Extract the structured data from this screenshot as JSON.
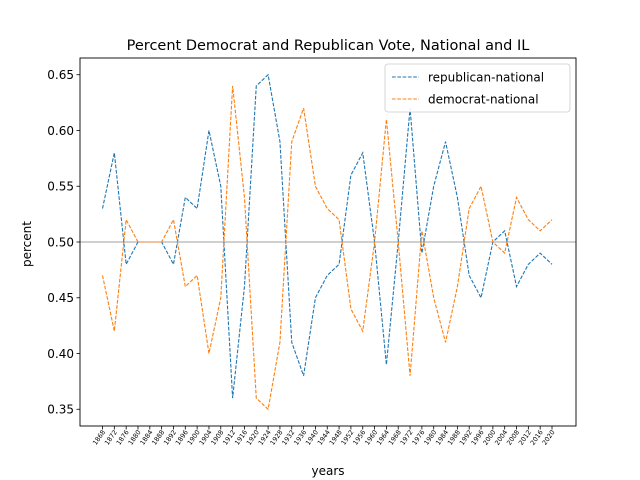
{
  "chart_data": {
    "type": "line",
    "title": "Percent Democrat and Republican Vote, National and IL",
    "xlabel": "years",
    "ylabel": "percent",
    "x": [
      1868,
      1872,
      1876,
      1880,
      1884,
      1888,
      1892,
      1896,
      1900,
      1904,
      1908,
      1912,
      1916,
      1920,
      1924,
      1928,
      1932,
      1936,
      1940,
      1944,
      1948,
      1952,
      1956,
      1960,
      1964,
      1968,
      1972,
      1976,
      1980,
      1984,
      1988,
      1992,
      1996,
      2000,
      2004,
      2008,
      2012,
      2016,
      2020
    ],
    "xticklabels": [
      "1868",
      "1872",
      "1876",
      "1880",
      "1884",
      "1888",
      "1892",
      "1896",
      "1900",
      "1904",
      "1908",
      "1912",
      "1916",
      "1920",
      "1924",
      "1928",
      "1932",
      "1936",
      "1940",
      "1944",
      "1948",
      "1952",
      "1956",
      "1960",
      "1964",
      "1968",
      "1972",
      "1976",
      "1980",
      "1984",
      "1988",
      "1992",
      "1996",
      "2000",
      "2004",
      "2008",
      "2012",
      "2016",
      "2020"
    ],
    "ylim": [
      0.335,
      0.665
    ],
    "yticks": [
      0.35,
      0.4,
      0.45,
      0.5,
      0.55,
      0.6,
      0.65
    ],
    "yticklabels": [
      "0.35",
      "0.40",
      "0.45",
      "0.50",
      "0.55",
      "0.60",
      "0.65"
    ],
    "reference_line": 0.5,
    "line_style": "dashed",
    "grid": false,
    "legend_position": "top-right",
    "series": [
      {
        "name": "republican-national",
        "color": "#1f77b4",
        "values": [
          0.53,
          0.58,
          0.48,
          0.5,
          0.5,
          0.5,
          0.48,
          0.54,
          0.53,
          0.6,
          0.55,
          0.36,
          0.46,
          0.64,
          0.65,
          0.59,
          0.41,
          0.38,
          0.45,
          0.47,
          0.48,
          0.56,
          0.58,
          0.5,
          0.39,
          0.5,
          0.62,
          0.49,
          0.55,
          0.59,
          0.54,
          0.47,
          0.45,
          0.5,
          0.51,
          0.46,
          0.48,
          0.49,
          0.48
        ]
      },
      {
        "name": "democrat-national",
        "color": "#ff7f0e",
        "values": [
          0.47,
          0.42,
          0.52,
          0.5,
          0.5,
          0.5,
          0.52,
          0.46,
          0.47,
          0.4,
          0.45,
          0.64,
          0.54,
          0.36,
          0.35,
          0.41,
          0.59,
          0.62,
          0.55,
          0.53,
          0.52,
          0.44,
          0.42,
          0.5,
          0.61,
          0.5,
          0.38,
          0.51,
          0.45,
          0.41,
          0.46,
          0.53,
          0.55,
          0.5,
          0.49,
          0.54,
          0.52,
          0.51,
          0.52
        ]
      }
    ]
  }
}
